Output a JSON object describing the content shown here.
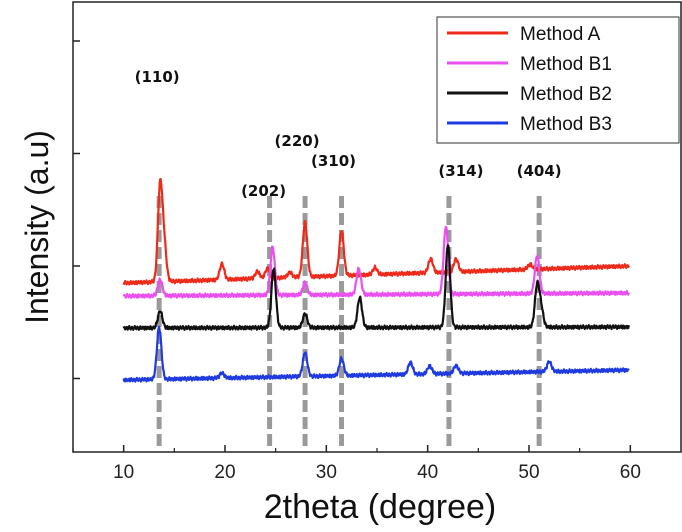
{
  "chart_data": {
    "type": "line",
    "xlabel": "2theta (degree)",
    "ylabel": "Intensity (a.u)",
    "xlim": [
      5,
      65
    ],
    "x_ticks": [
      10,
      20,
      30,
      40,
      50,
      60
    ],
    "x_tick_labels": [
      "10",
      "20",
      "30",
      "40",
      "50",
      "60"
    ],
    "legend": {
      "position": "top-right"
    },
    "colors": {
      "method_a": "#ee2a1b",
      "method_b1": "#ea4ff0",
      "method_b2": "#111111",
      "method_b3": "#1f3be0",
      "guide_lines": "#9a9a9a"
    },
    "series": [
      {
        "name": "Method A",
        "color": "#ee2a1b",
        "baseline": [
          [
            10,
            0.69
          ],
          [
            60,
            0.86
          ]
        ],
        "peaks": [
          [
            13.6,
            0.95
          ],
          [
            14.0,
            0.35
          ],
          [
            19.7,
            0.16
          ],
          [
            23.2,
            0.07
          ],
          [
            24.2,
            0.1
          ],
          [
            26.4,
            0.05
          ],
          [
            27.9,
            0.55
          ],
          [
            31.5,
            0.45
          ],
          [
            34.8,
            0.07
          ],
          [
            40.3,
            0.14
          ],
          [
            42.8,
            0.13
          ],
          [
            50.1,
            0.05
          ]
        ]
      },
      {
        "name": "Method B1",
        "color": "#ea4ff0",
        "baseline": [
          [
            10,
            0.56
          ],
          [
            60,
            0.59
          ]
        ],
        "peaks": [
          [
            13.6,
            0.16
          ],
          [
            24.7,
            0.48
          ],
          [
            27.9,
            0.12
          ],
          [
            33.2,
            0.26
          ],
          [
            41.8,
            0.68
          ],
          [
            50.8,
            0.38
          ]
        ]
      },
      {
        "name": "Method B2",
        "color": "#111111",
        "baseline": [
          [
            10,
            0.24
          ],
          [
            60,
            0.25
          ]
        ],
        "peaks": [
          [
            13.6,
            0.17
          ],
          [
            24.8,
            0.59
          ],
          [
            27.9,
            0.14
          ],
          [
            33.3,
            0.3
          ],
          [
            42.0,
            0.83
          ],
          [
            50.8,
            0.41
          ],
          [
            51.2,
            0.18
          ]
        ]
      },
      {
        "name": "Method B3",
        "color": "#1f3be0",
        "baseline": [
          [
            10,
            -0.28
          ],
          [
            60,
            -0.18
          ]
        ],
        "peaks": [
          [
            13.5,
            0.52
          ],
          [
            19.7,
            0.05
          ],
          [
            27.9,
            0.24
          ],
          [
            31.5,
            0.17
          ],
          [
            38.3,
            0.12
          ],
          [
            40.2,
            0.08
          ],
          [
            42.8,
            0.08
          ],
          [
            52.0,
            0.1
          ]
        ]
      }
    ],
    "reference_lines": [
      {
        "x": 13.5,
        "label": "(110)"
      },
      {
        "x": 24.4,
        "label": "(202)"
      },
      {
        "x": 27.9,
        "label": "(220)"
      },
      {
        "x": 31.5,
        "label": "(310)"
      },
      {
        "x": 42.1,
        "label": "(314)"
      },
      {
        "x": 51.0,
        "label": "(404)"
      }
    ]
  }
}
